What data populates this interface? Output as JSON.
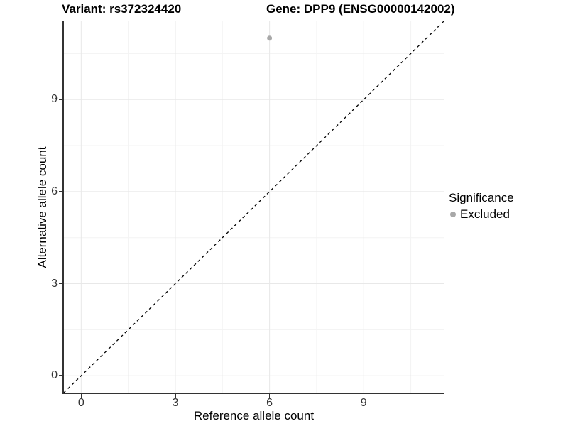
{
  "titles": {
    "variant": "Variant: rs372324420",
    "gene": "Gene: DPP9 (ENSG00000142002)"
  },
  "legend": {
    "title": "Significance",
    "items": [
      {
        "label": "Excluded",
        "color": "#a8a8a8"
      }
    ]
  },
  "colors": {
    "point": "#a8a8a8",
    "grid_major": "#e8e8e8",
    "grid_minor": "#f3f3f3",
    "axis_line": "#333333",
    "identity_line": "#000000"
  },
  "chart_data": {
    "type": "scatter",
    "title": "Variant: rs372324420 | Gene: DPP9 (ENSG00000142002)",
    "xlabel": "Reference allele count",
    "ylabel": "Alternative allele count",
    "xlim": [
      -0.55,
      11.55
    ],
    "ylim": [
      -0.55,
      11.55
    ],
    "x_ticks": [
      0,
      3,
      6,
      9
    ],
    "y_ticks": [
      0,
      3,
      6,
      9
    ],
    "x_minor": [
      1.5,
      4.5,
      7.5,
      10.5
    ],
    "y_minor": [
      1.5,
      4.5,
      7.5,
      10.5
    ],
    "grid": true,
    "legend_position": "right",
    "series": [
      {
        "name": "Excluded",
        "color": "#a8a8a8",
        "points": [
          {
            "x": 6,
            "y": 11
          }
        ]
      }
    ],
    "reference_line": {
      "kind": "identity",
      "slope": 1,
      "intercept": 0,
      "style": "dashed",
      "color": "#000000"
    }
  }
}
